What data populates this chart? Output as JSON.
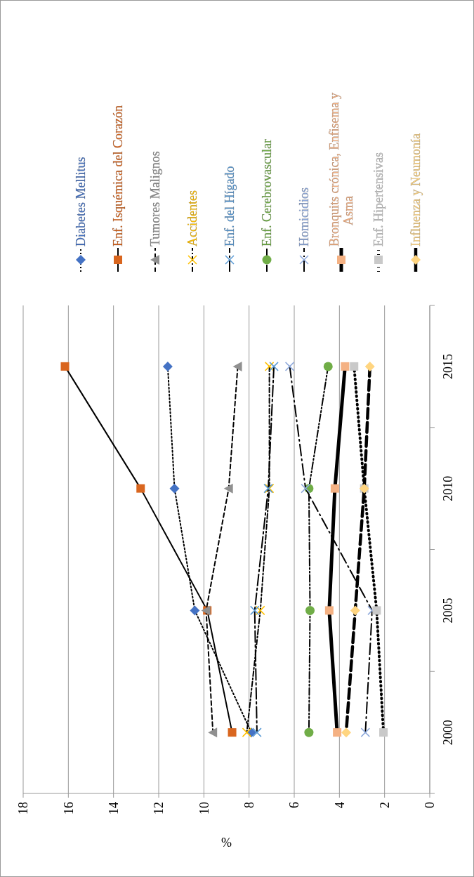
{
  "chart_data": {
    "type": "line",
    "orientation": "horizontal",
    "xlabel": "%",
    "categories": [
      "2015",
      "2010",
      "2005",
      "2000"
    ],
    "xlim": [
      18,
      0
    ],
    "xticks": [
      18,
      16,
      14,
      12,
      10,
      8,
      6,
      4,
      2,
      0
    ],
    "grid": "x",
    "legend": "top",
    "series": [
      {
        "name": "Diabetes Mellitus",
        "color": "#4472c4",
        "marker": "diamond",
        "line_style": "dotted",
        "values": [
          11.6,
          11.3,
          10.4,
          7.9
        ]
      },
      {
        "name": "Enf. Isquémica del Corazón",
        "color": "#d9661f",
        "marker": "square",
        "line_style": "solid",
        "values": [
          16.15,
          12.8,
          9.85,
          8.75
        ]
      },
      {
        "name": "Tumores Malignos",
        "color": "#909090",
        "marker": "triangle",
        "line_style": "dashed",
        "values": [
          8.5,
          8.9,
          9.9,
          9.6
        ]
      },
      {
        "name": "Accidentes",
        "color": "#ffc000",
        "marker": "cross",
        "line_style": "dashed",
        "values": [
          7.1,
          7.1,
          7.5,
          8.1
        ]
      },
      {
        "name": "Enf. del Hígado",
        "color": "#5b9bd5",
        "marker": "cross",
        "line_style": "dashed",
        "values": [
          6.9,
          7.15,
          7.75,
          7.65
        ]
      },
      {
        "name": "Enf. Cerebrovascular",
        "color": "#70ad47",
        "marker": "circle",
        "line_style": "dashed",
        "values": [
          4.5,
          5.35,
          5.3,
          5.35
        ]
      },
      {
        "name": "Homicidios",
        "color": "#8faadc",
        "marker": "cross",
        "line_style": "dashed",
        "values": [
          6.2,
          5.5,
          2.55,
          2.85
        ]
      },
      {
        "name": "Bronquits crónica, Enfisema y Asma",
        "color": "#f4b183",
        "marker": "square",
        "line_style": "solid",
        "values": [
          3.75,
          4.2,
          4.45,
          4.1
        ]
      },
      {
        "name": "Enf. Hipertensivas",
        "color": "#c9c9c9",
        "marker": "square",
        "line_style": "dotted",
        "values": [
          3.35,
          2.9,
          2.35,
          2.05
        ]
      },
      {
        "name": "Influenza y Neumonía",
        "color": "#ffd580",
        "marker": "diamond",
        "line_style": "dashed",
        "values": [
          2.65,
          2.9,
          3.3,
          3.7
        ]
      }
    ]
  }
}
